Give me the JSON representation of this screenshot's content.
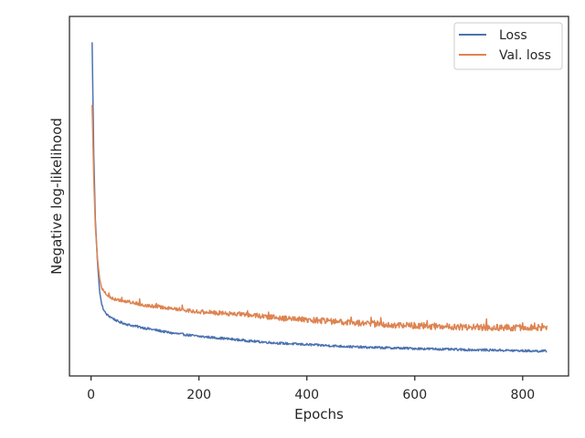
{
  "chart_data": {
    "type": "line",
    "title": "",
    "xlabel": "Epochs",
    "ylabel": "Negative log-likelihood",
    "xlim": [
      -40,
      885
    ],
    "ylim": [
      0,
      1
    ],
    "xticks": [
      0,
      200,
      400,
      600,
      800
    ],
    "xtick_labels": [
      "0",
      "200",
      "400",
      "600",
      "800"
    ],
    "yticks_shown": false,
    "grid": false,
    "legend_position": "top-right",
    "series": [
      {
        "name": "Loss",
        "color": "#4c72b0",
        "x": [
          2,
          5,
          8,
          12,
          16,
          20,
          25,
          30,
          40,
          50,
          70,
          100,
          150,
          200,
          250,
          300,
          350,
          400,
          450,
          500,
          550,
          600,
          650,
          700,
          750,
          800,
          845
        ],
        "y": [
          0.96,
          0.62,
          0.42,
          0.29,
          0.2,
          0.16,
          0.14,
          0.13,
          0.12,
          0.11,
          0.1,
          0.09,
          0.075,
          0.065,
          0.058,
          0.05,
          0.044,
          0.04,
          0.036,
          0.032,
          0.03,
          0.028,
          0.026,
          0.024,
          0.023,
          0.021,
          0.02
        ]
      },
      {
        "name": "Val. loss",
        "color": "#dd8452",
        "x": [
          2,
          5,
          8,
          12,
          16,
          20,
          25,
          30,
          40,
          50,
          70,
          100,
          150,
          200,
          250,
          300,
          350,
          400,
          450,
          500,
          550,
          600,
          650,
          700,
          750,
          800,
          845
        ],
        "y": [
          0.77,
          0.55,
          0.4,
          0.3,
          0.24,
          0.21,
          0.2,
          0.19,
          0.18,
          0.175,
          0.17,
          0.16,
          0.15,
          0.14,
          0.135,
          0.13,
          0.12,
          0.115,
          0.11,
          0.105,
          0.1,
          0.098,
          0.095,
          0.093,
          0.092,
          0.092,
          0.092
        ]
      }
    ]
  }
}
